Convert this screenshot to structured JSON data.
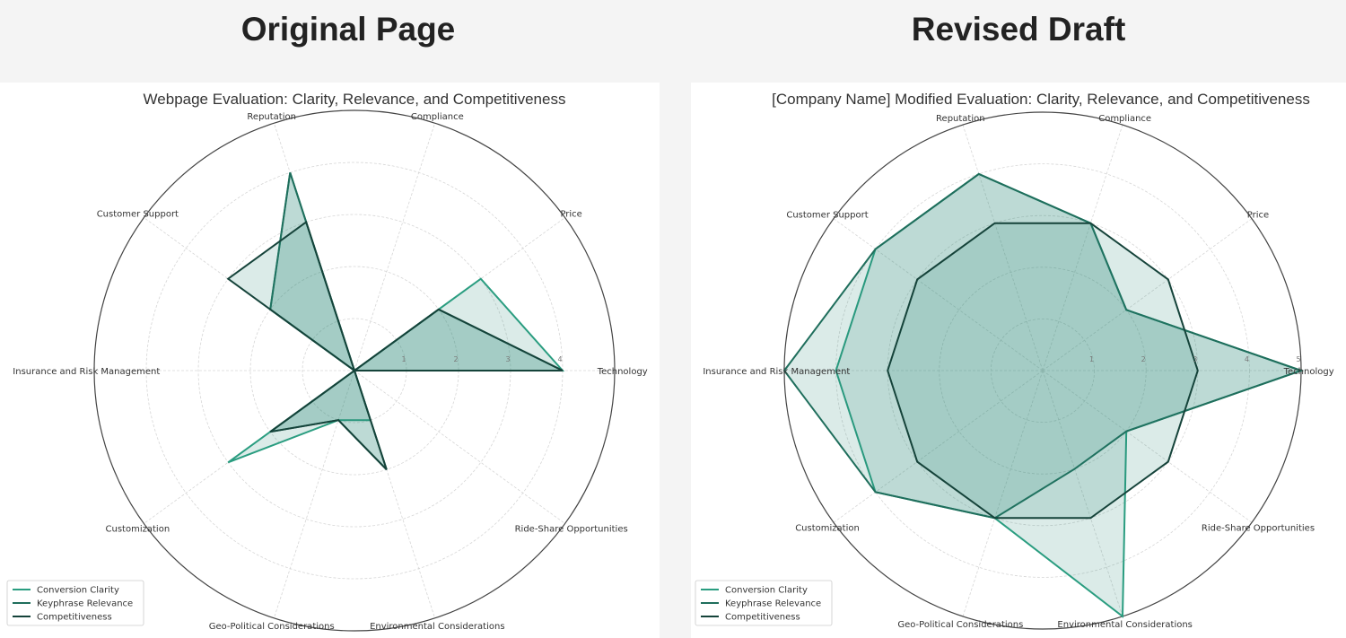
{
  "headings": {
    "left": "Original Page",
    "right": "Revised Draft"
  },
  "colors": {
    "Conversion Clarity": "#2a9d80",
    "Keyphrase Relevance": "#1f6e5c",
    "Competitiveness": "#15433a",
    "fill": "#2a8a74",
    "grid": "#d6d6d6",
    "frame": "#444444"
  },
  "chart_data": [
    {
      "type": "radar",
      "title": "Webpage Evaluation: Clarity, Relevance, and Competitiveness",
      "categories": [
        "Technology",
        "Price",
        "Compliance",
        "Reputation",
        "Customer Support",
        "Insurance and Risk Management",
        "Customization",
        "Geo-Political Considerations",
        "Environmental Considerations",
        "Ride-Share Opportunities"
      ],
      "ylim": [
        0,
        5
      ],
      "radial_ticks": [
        "1",
        "2",
        "3",
        "4"
      ],
      "grid": true,
      "legend": "lower-left",
      "series": [
        {
          "name": "Conversion Clarity",
          "values": [
            4,
            3,
            0,
            4,
            2,
            0,
            3,
            1,
            1,
            0
          ]
        },
        {
          "name": "Keyphrase Relevance",
          "values": [
            4,
            2,
            0,
            4,
            2,
            0,
            2,
            1,
            2,
            0
          ]
        },
        {
          "name": "Competitiveness",
          "values": [
            4,
            2,
            0,
            3,
            3,
            0,
            2,
            1,
            2,
            0
          ]
        }
      ]
    },
    {
      "type": "radar",
      "title": "[Company Name] Modified Evaluation: Clarity, Relevance, and Competitiveness",
      "categories": [
        "Technology",
        "Price",
        "Compliance",
        "Reputation",
        "Customer Support",
        "Insurance and Risk Management",
        "Customization",
        "Geo-Political Considerations",
        "Environmental Considerations",
        "Ride-Share Opportunities"
      ],
      "ylim": [
        0,
        5
      ],
      "radial_ticks": [
        "1",
        "2",
        "3",
        "4",
        "5"
      ],
      "grid": true,
      "legend": "lower-left",
      "series": [
        {
          "name": "Conversion Clarity",
          "values": [
            5,
            2,
            3,
            4,
            4,
            4,
            4,
            3,
            5,
            2
          ]
        },
        {
          "name": "Keyphrase Relevance",
          "values": [
            5,
            2,
            3,
            4,
            4,
            5,
            4,
            3,
            2,
            2
          ]
        },
        {
          "name": "Competitiveness",
          "values": [
            3,
            3,
            3,
            3,
            3,
            3,
            3,
            3,
            3,
            3
          ]
        }
      ]
    }
  ]
}
